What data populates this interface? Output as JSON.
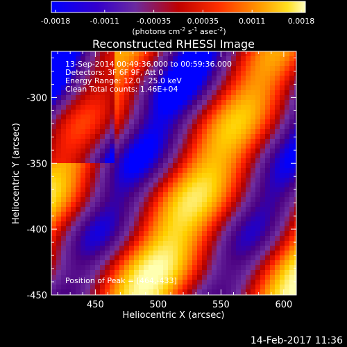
{
  "colorbar": {
    "ticks": [
      "-0.0018",
      "-0.0011",
      "-0.00035",
      "0.00035",
      "0.0011",
      "0.0018"
    ],
    "unit_label": "(photons cm",
    "unit_sup1": "-2",
    "unit_mid": " s",
    "unit_sup2": "-1",
    "unit_end": " asec",
    "unit_sup3": "-2",
    "unit_close": ")"
  },
  "chart_data": {
    "type": "heatmap",
    "title": "Reconstructed RHESSI Image",
    "xlabel": "Heliocentric X (arcsec)",
    "ylabel": "Heliocentric Y (arcsec)",
    "xlim": [
      415,
      610
    ],
    "ylim": [
      -450,
      -265
    ],
    "xticks": [
      450,
      500,
      550,
      600
    ],
    "yticks": [
      -300,
      -350,
      -400,
      -450
    ],
    "value_range": [
      -0.0018,
      0.0018
    ],
    "colormap": [
      "#0000ff",
      "#4b0082",
      "#7030a0",
      "#b00000",
      "#ff2000",
      "#ff8000",
      "#ffd000",
      "#ffffb0"
    ],
    "annotations": [
      "13-Sep-2014 00:49:36.000 to 00:59:36.000",
      "Detectors: 3F 6F 9F, Att 0",
      "Energy Range: 12.0 - 25.0 keV",
      "Clean     Total counts: 1.46E+04"
    ],
    "peak_label": "Position of Peak = [464,-433]",
    "peak": [
      464,
      -433
    ]
  },
  "timestamp": "14-Feb-2017 11:36"
}
